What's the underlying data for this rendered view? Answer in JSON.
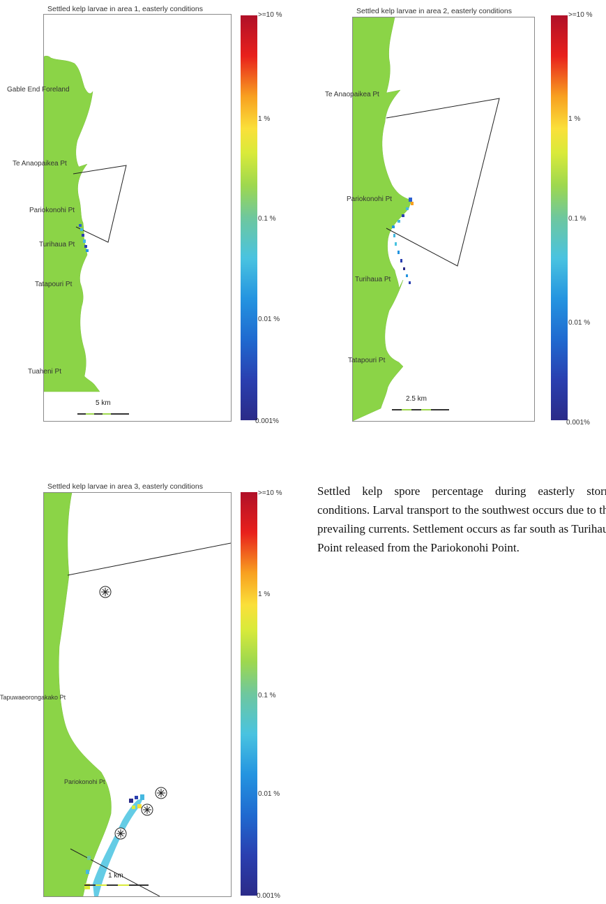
{
  "maps": [
    {
      "title": "Settled kelp larvae in area 1, easterly conditions",
      "places": [
        "Gable End Foreland",
        "Te Anaopaikea Pt",
        "Pariokonohi Pt",
        "Turihaua Pt",
        "Tatapouri Pt",
        "Tuaheni Pt"
      ],
      "scale_label": "5 km",
      "colorbar_ticks": [
        ">=10 %",
        "1 %",
        "0.1 %",
        "0.01 %",
        "0.001%"
      ]
    },
    {
      "title": "Settled kelp larvae in area 2, easterly conditions",
      "places": [
        "Te Anaopaikea Pt",
        "Pariokonohi Pt",
        "Turihaua Pt",
        "Tatapouri Pt"
      ],
      "scale_label": "2.5 km",
      "colorbar_ticks": [
        ">=10 %",
        "1 %",
        "0.1 %",
        "0.01 %",
        "0.001%"
      ]
    },
    {
      "title": "Settled kelp larvae in area 3, easterly conditions",
      "places": [
        "Tapuwaeorongakako Pt",
        "Pariokonohi Pt"
      ],
      "scale_label": "1 km",
      "colorbar_ticks": [
        ">=10 %",
        "1 %",
        "0.1 %",
        "0.01 %",
        "0.001%"
      ]
    }
  ],
  "caption": "Settled kelp spore percentage during easterly storm conditions. Larval transport to the southwest occurs due to the prevailing currents. Settlement occurs as far south as Turihaua Point released from the Pariokonohi Point.",
  "colors": {
    "land": "#8bd447",
    "colorbar_top": "#b01028",
    "colorbar_bottom": "#2b2b88"
  }
}
